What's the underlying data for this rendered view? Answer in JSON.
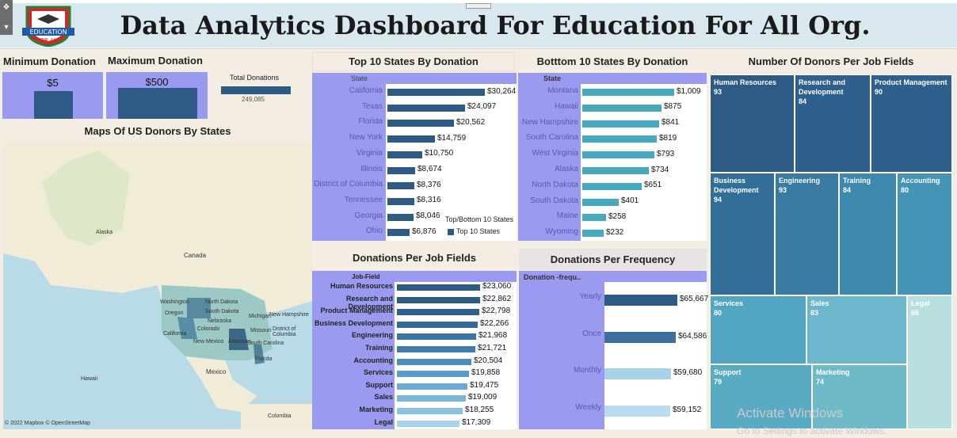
{
  "header": {
    "title": "Data Analytics Dashboard For Education For All Org.",
    "logo_text_1": "EDUCATION",
    "logo_text_2": "FOR ALL"
  },
  "kpis": {
    "min_title": "Minimum Donation",
    "min_value": "$5",
    "max_title": "Maximum Donation",
    "max_value": "$500",
    "total_title": "Total Donations",
    "total_value": "249,085"
  },
  "map": {
    "title": "Maps Of US Donors By States",
    "labels": [
      "Alaska",
      "Canada",
      "Washington",
      "North Dakota",
      "Oregon",
      "South Dakota",
      "Michigan",
      "New Hampshire",
      "Nebraska",
      "Colorado",
      "Missouri",
      "District of Columbia",
      "California",
      "New Mexico",
      "Arkansas",
      "South Carolina",
      "Florida",
      "Mexico",
      "Hawaii",
      "Colombia"
    ],
    "attribution": "© 2022 Mapbox  © OpenStreetMap"
  },
  "top10": {
    "title": "Top 10 States By Donation",
    "column_header": "State",
    "legend_title": "Top/Bottom 10 States",
    "legend_item": "Top 10 States",
    "color": "#2e5a86"
  },
  "bottom10": {
    "title": "Botttom 10 States By Donation",
    "column_header": "State",
    "color": "#47a9be"
  },
  "jobfields_bar": {
    "title": "Donations Per Job Fields",
    "column_header": "Job-Field"
  },
  "frequency": {
    "title": "Donations Per Frequency",
    "column_header": "Donation -frequ.."
  },
  "treemap": {
    "title": "Number Of Donors Per Job Fields"
  },
  "watermark": {
    "line1": "Activate Windows",
    "line2": "Go to Settings to activate Windows."
  },
  "chart_data": [
    {
      "type": "bar",
      "title": "Top 10 States By Donation",
      "categories": [
        "California",
        "Texas",
        "Florida",
        "New York",
        "Virginia",
        "Illinois",
        "District of Columbia",
        "Tennessee",
        "Georgia",
        "Ohio"
      ],
      "values": [
        30264,
        24097,
        20562,
        14759,
        10750,
        8674,
        8376,
        8316,
        8046,
        6876
      ],
      "labels": [
        "$30,264",
        "$24,097",
        "$20,562",
        "$14,759",
        "$10,750",
        "$8,674",
        "$8,376",
        "$8,316",
        "$8,046",
        "$6,876"
      ],
      "xlim": [
        0,
        32000
      ]
    },
    {
      "type": "bar",
      "title": "Botttom 10 States By Donation",
      "categories": [
        "Montana",
        "Hawaii",
        "New Hampshire",
        "South Carolina",
        "West Virginia",
        "Alaska",
        "North Dakota",
        "South Dakota",
        "Maine",
        "Wyoming"
      ],
      "values": [
        1009,
        875,
        841,
        819,
        793,
        734,
        651,
        401,
        258,
        232
      ],
      "labels": [
        "$1,009",
        "$875",
        "$841",
        "$819",
        "$793",
        "$734",
        "$651",
        "$401",
        "$258",
        "$232"
      ],
      "xlim": [
        0,
        1080
      ]
    },
    {
      "type": "bar",
      "title": "Donations Per Job Fields",
      "categories": [
        "Human Resources",
        "Research and Development",
        "Product Management",
        "Business Development",
        "Engineering",
        "Training",
        "Accounting",
        "Services",
        "Support",
        "Sales",
        "Marketing",
        "Legal"
      ],
      "values": [
        23060,
        22862,
        22798,
        22266,
        21968,
        21721,
        20504,
        19858,
        19475,
        19009,
        18255,
        17309
      ],
      "labels": [
        "$23,060",
        "$22,862",
        "$22,798",
        "$22,266",
        "$21,968",
        "$21,721",
        "$20,504",
        "$19,858",
        "$19,475",
        "$19,009",
        "$18,255",
        "$17,309"
      ],
      "colors": [
        "#2e5a86",
        "#2e5a86",
        "#2f5f8c",
        "#356a98",
        "#3a74a3",
        "#3f7daf",
        "#4c8dbd",
        "#5a9dca",
        "#6aaad3",
        "#7ab6da",
        "#8cc2e1",
        "#a6d2ea"
      ],
      "xlim": [
        0,
        24500
      ]
    },
    {
      "type": "bar",
      "title": "Donations Per Frequency",
      "categories": [
        "Yearly",
        "Once",
        "Monthly",
        "Weekly"
      ],
      "values": [
        65667,
        64586,
        59680,
        59152
      ],
      "labels": [
        "$65,667",
        "$64,586",
        "$59,680",
        "$59,152"
      ],
      "colors": [
        "#2e5a86",
        "#3d6e9e",
        "#a6d2ea",
        "#b9dcef"
      ],
      "xlim": [
        0,
        70000
      ]
    },
    {
      "type": "treemap",
      "title": "Number Of Donors Per Job Fields",
      "categories": [
        "Human Resources",
        "Research and Development",
        "Product Management",
        "Business Development",
        "Engineering",
        "Training",
        "Accounting",
        "Services",
        "Sales",
        "Legal",
        "Support",
        "Marketing"
      ],
      "values": [
        93,
        84,
        90,
        94,
        93,
        84,
        80,
        80,
        83,
        66,
        79,
        74
      ]
    }
  ]
}
